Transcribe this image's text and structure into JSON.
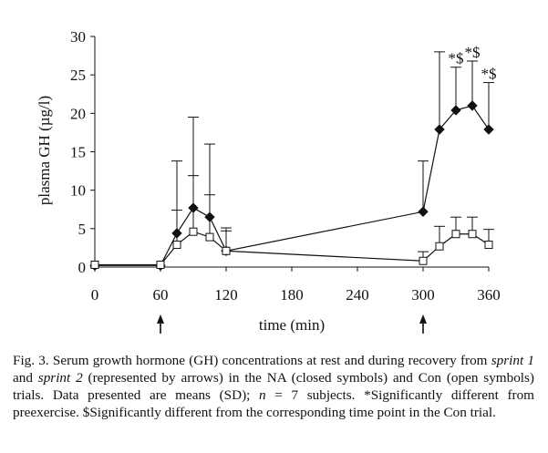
{
  "chart_data": {
    "type": "line",
    "xlabel": "time (min)",
    "ylabel": "plasma GH (µg/l)",
    "xlim": [
      0,
      360
    ],
    "ylim": [
      0,
      30
    ],
    "xticks": [
      "0",
      "60",
      "120",
      "180",
      "240",
      "300",
      "360"
    ],
    "yticks": [
      "0",
      "5",
      "10",
      "15",
      "20",
      "25",
      "30"
    ],
    "arrows_at_x": [
      60,
      300
    ],
    "series": [
      {
        "marker": "filled-diamond",
        "x": [
          0,
          60,
          75,
          90,
          105,
          120,
          300,
          315,
          330,
          345,
          360
        ],
        "y": [
          0.2,
          0.2,
          4.4,
          7.7,
          6.5,
          2.1,
          7.2,
          17.9,
          20.4,
          21.0,
          17.9
        ],
        "sd": [
          0,
          0,
          9.4,
          11.8,
          9.5,
          2.6,
          6.6,
          10.1,
          5.6,
          5.8,
          6.1
        ]
      },
      {
        "marker": "open-square",
        "x": [
          0,
          60,
          75,
          90,
          105,
          120,
          300,
          315,
          330,
          345,
          360
        ],
        "y": [
          0.3,
          0.3,
          2.9,
          4.6,
          3.9,
          2.1,
          0.8,
          2.7,
          4.3,
          4.3,
          2.9
        ],
        "sd": [
          0,
          0,
          4.5,
          7.3,
          5.5,
          3.0,
          1.2,
          2.6,
          2.2,
          2.2,
          2.0
        ]
      }
    ],
    "annotations": [
      {
        "x": 330,
        "y": 20.4,
        "text": "*$"
      },
      {
        "x": 345,
        "y": 21.0,
        "text": "*$"
      },
      {
        "x": 360,
        "y": 17.9,
        "text": "*$"
      }
    ]
  },
  "caption": {
    "p1": "Fig. 3.  Serum growth hormone (GH) concentrations at rest and during recovery from ",
    "sprint1": "sprint 1",
    "p2": " and ",
    "sprint2": "sprint 2",
    "p3": " (represented by arrows) in the NA (closed symbols) and Con (open symbols) trials. Data presented are means (SD); ",
    "n": "n",
    "p4": " = 7 subjects. *Significantly different from preexercise. $Significantly different from the corresponding time point in the Con trial."
  }
}
